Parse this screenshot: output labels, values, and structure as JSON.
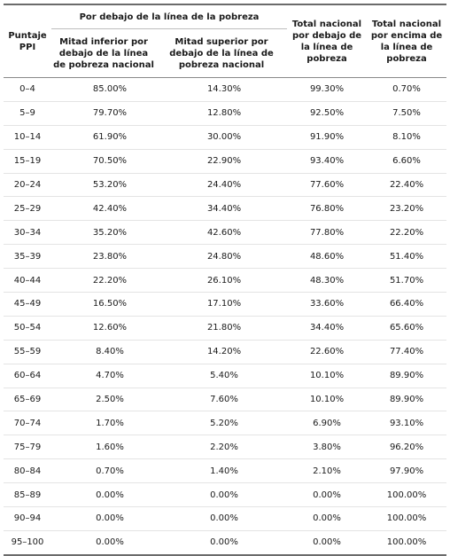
{
  "table": {
    "headers": {
      "score": "Puntaje PPI",
      "group_below": "Por debajo de la línea de la pobreza",
      "lower_half": "Mitad inferior por debajo de la línea de pobreza nacional",
      "upper_half": "Mitad superior por debajo de la línea de pobreza nacional",
      "total_below": "Total nacional por debajo de la línea de pobreza",
      "total_above": "Total nacional por encima de la línea de pobreza"
    },
    "rows": [
      {
        "score": "0–4",
        "lower": "85.00%",
        "upper": "14.30%",
        "total_below": "99.30%",
        "total_above": "0.70%"
      },
      {
        "score": "5–9",
        "lower": "79.70%",
        "upper": "12.80%",
        "total_below": "92.50%",
        "total_above": "7.50%"
      },
      {
        "score": "10–14",
        "lower": "61.90%",
        "upper": "30.00%",
        "total_below": "91.90%",
        "total_above": "8.10%"
      },
      {
        "score": "15–19",
        "lower": "70.50%",
        "upper": "22.90%",
        "total_below": "93.40%",
        "total_above": "6.60%"
      },
      {
        "score": "20–24",
        "lower": "53.20%",
        "upper": "24.40%",
        "total_below": "77.60%",
        "total_above": "22.40%"
      },
      {
        "score": "25–29",
        "lower": "42.40%",
        "upper": "34.40%",
        "total_below": "76.80%",
        "total_above": "23.20%"
      },
      {
        "score": "30–34",
        "lower": "35.20%",
        "upper": "42.60%",
        "total_below": "77.80%",
        "total_above": "22.20%"
      },
      {
        "score": "35–39",
        "lower": "23.80%",
        "upper": "24.80%",
        "total_below": "48.60%",
        "total_above": "51.40%"
      },
      {
        "score": "40–44",
        "lower": "22.20%",
        "upper": "26.10%",
        "total_below": "48.30%",
        "total_above": "51.70%"
      },
      {
        "score": "45–49",
        "lower": "16.50%",
        "upper": "17.10%",
        "total_below": "33.60%",
        "total_above": "66.40%"
      },
      {
        "score": "50–54",
        "lower": "12.60%",
        "upper": "21.80%",
        "total_below": "34.40%",
        "total_above": "65.60%"
      },
      {
        "score": "55–59",
        "lower": "8.40%",
        "upper": "14.20%",
        "total_below": "22.60%",
        "total_above": "77.40%"
      },
      {
        "score": "60–64",
        "lower": "4.70%",
        "upper": "5.40%",
        "total_below": "10.10%",
        "total_above": "89.90%"
      },
      {
        "score": "65–69",
        "lower": "2.50%",
        "upper": "7.60%",
        "total_below": "10.10%",
        "total_above": "89.90%"
      },
      {
        "score": "70–74",
        "lower": "1.70%",
        "upper": "5.20%",
        "total_below": "6.90%",
        "total_above": "93.10%"
      },
      {
        "score": "75–79",
        "lower": "1.60%",
        "upper": "2.20%",
        "total_below": "3.80%",
        "total_above": "96.20%"
      },
      {
        "score": "80–84",
        "lower": "0.70%",
        "upper": "1.40%",
        "total_below": "2.10%",
        "total_above": "97.90%"
      },
      {
        "score": "85–89",
        "lower": "0.00%",
        "upper": "0.00%",
        "total_below": "0.00%",
        "total_above": "100.00%"
      },
      {
        "score": "90–94",
        "lower": "0.00%",
        "upper": "0.00%",
        "total_below": "0.00%",
        "total_above": "100.00%"
      },
      {
        "score": "95–100",
        "lower": "0.00%",
        "upper": "0.00%",
        "total_below": "0.00%",
        "total_above": "100.00%"
      }
    ]
  }
}
